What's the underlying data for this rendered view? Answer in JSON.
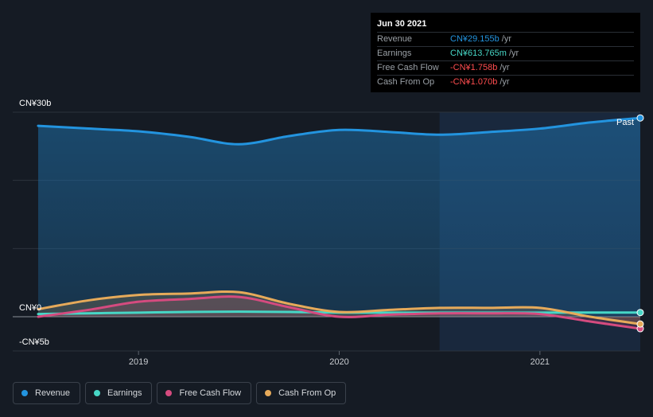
{
  "chart_data": {
    "type": "line",
    "x": [
      2018.5,
      2018.75,
      2019.0,
      2019.25,
      2019.5,
      2019.75,
      2020.0,
      2020.25,
      2020.5,
      2020.75,
      2021.0,
      2021.25,
      2021.5
    ],
    "series": [
      {
        "name": "Revenue",
        "color": "#2394df",
        "values": [
          28.0,
          27.6,
          27.2,
          26.4,
          25.3,
          26.5,
          27.4,
          27.1,
          26.7,
          27.1,
          27.6,
          28.5,
          29.155
        ]
      },
      {
        "name": "Earnings",
        "color": "#47d7c6",
        "values": [
          0.4,
          0.5,
          0.6,
          0.7,
          0.75,
          0.7,
          0.6,
          0.6,
          0.6,
          0.6,
          0.6,
          0.614,
          0.614
        ]
      },
      {
        "name": "Free Cash Flow",
        "color": "#d54b7f",
        "values": [
          0.0,
          1.0,
          2.2,
          2.6,
          2.9,
          1.4,
          0.0,
          0.3,
          0.5,
          0.5,
          0.4,
          -0.7,
          -1.758
        ]
      },
      {
        "name": "Cash From Op",
        "color": "#e6aa5a",
        "values": [
          1.1,
          2.4,
          3.2,
          3.4,
          3.6,
          1.9,
          0.7,
          1.0,
          1.3,
          1.3,
          1.3,
          0.0,
          -1.07
        ]
      }
    ],
    "y_ticks": [
      {
        "value": 30,
        "label": "CN¥30b"
      },
      {
        "value": 0,
        "label": "CN¥0"
      },
      {
        "value": -5,
        "label": "-CN¥5b"
      }
    ],
    "x_ticks": [
      {
        "value": 2019.0,
        "label": "2019"
      },
      {
        "value": 2020.0,
        "label": "2020"
      },
      {
        "value": 2021.0,
        "label": "2021"
      }
    ],
    "ylim": [
      -5,
      30
    ],
    "xlim": [
      2018.5,
      2021.5
    ],
    "past_start": 2020.5,
    "past_label": "Past",
    "legend_placement": "bottom-left"
  },
  "tooltip": {
    "date": "Jun 30 2021",
    "rows": [
      {
        "label": "Revenue",
        "value": "CN¥29.155b",
        "unit": "/yr",
        "color": "#2394df"
      },
      {
        "label": "Earnings",
        "value": "CN¥613.765m",
        "unit": "/yr",
        "color": "#47d7c6"
      },
      {
        "label": "Free Cash Flow",
        "value": "-CN¥1.758b",
        "unit": "/yr",
        "color": "#ff4d4f"
      },
      {
        "label": "Cash From Op",
        "value": "-CN¥1.070b",
        "unit": "/yr",
        "color": "#ff4d4f"
      }
    ]
  },
  "legend": [
    {
      "label": "Revenue",
      "color": "#2394df"
    },
    {
      "label": "Earnings",
      "color": "#47d7c6"
    },
    {
      "label": "Free Cash Flow",
      "color": "#d54b7f"
    },
    {
      "label": "Cash From Op",
      "color": "#e6aa5a"
    }
  ]
}
